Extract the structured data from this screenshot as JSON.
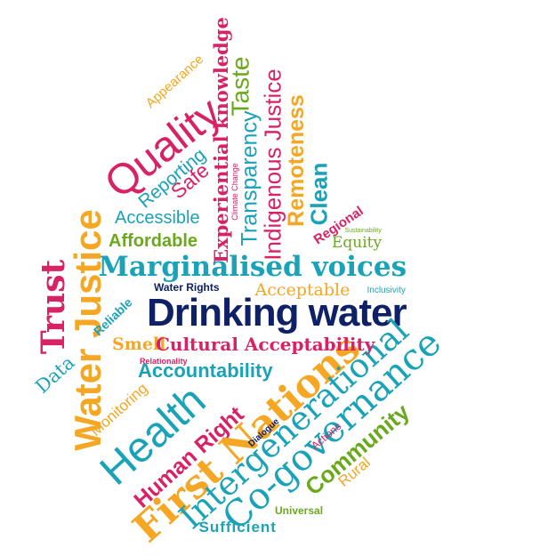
{
  "colors": {
    "navy": "#0f2166",
    "teal": "#1aa3b8",
    "pink": "#d82266",
    "orange": "#f5a623",
    "green": "#6aa81c"
  },
  "words": {
    "drinking_water": "Drinking water",
    "marginalised_voices": "Marginalised voices",
    "quality": "Quality",
    "water_justice": "Water Justice",
    "first_nations": "First Nations",
    "health": "Health",
    "co_governance": "Co-governance",
    "intergenerational": "Intergenerational",
    "community": "Community",
    "trust": "Trust",
    "accountability": "Accountability",
    "cultural_acceptability": "Cultural Acceptability",
    "remoteness": "Remoteness",
    "clean": "Clean",
    "indigenous_justice": "Indigenous Justice",
    "transparency": "Transparency",
    "experiential_knowledge": "Experiential knowledge",
    "taste": "Taste",
    "accessible": "Accessible",
    "affordable": "Affordable",
    "acceptable": "Acceptable",
    "human_right": "Human Right",
    "regional": "Regional",
    "safe": "Safe",
    "reporting": "Reporting",
    "appearance": "Appearance",
    "climate_change": "Climate Change",
    "smell": "Smell",
    "water_rights": "Water Rights",
    "reliable": "Reliable",
    "data": "Data",
    "monitoring": "Monitoring",
    "relationality": "Relationality",
    "inclusivity": "Inclusivity",
    "equity": "Equity",
    "sustainability": "Sustainability",
    "dialogue": "Dialogue",
    "actions": "Actions",
    "rural": "Rural",
    "universal": "Universal",
    "sufficient": "Sufficient"
  }
}
